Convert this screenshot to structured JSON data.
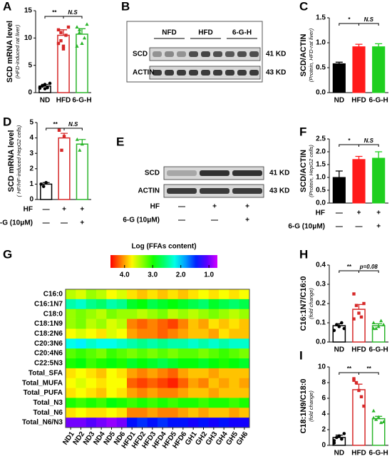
{
  "chart_data": [
    {
      "type": "bar",
      "panel": "A",
      "ylabel": "SCD mRNA level",
      "ysublabel": "(HFD-induced rat liver)",
      "bar_style": "outline",
      "categories": [
        "ND",
        "HFD",
        "6-G-H"
      ],
      "colors": [
        "#000000",
        "#d62828",
        "#2bb52b"
      ],
      "values": [
        1.2,
        10.5,
        10.7
      ],
      "errors": [
        0.3,
        1.0,
        1.0
      ],
      "points": [
        [
          0.8,
          1.2,
          1.5,
          0.9,
          1.7,
          1.0,
          1.3,
          0.7
        ],
        [
          11.5,
          9.5,
          8.5,
          10.5,
          12,
          9,
          11,
          8
        ],
        [
          12,
          11,
          9,
          10,
          12.5,
          8.5,
          11.5,
          9
        ]
      ],
      "annotations": [
        "**",
        "N.S"
      ],
      "ylim": [
        0,
        15
      ],
      "yticks": [
        0,
        5,
        10,
        15
      ]
    },
    {
      "type": "bar",
      "panel": "C",
      "ylabel": "SCD/ACTIN",
      "ysublabel": "(Protein, HFD-rat liver)",
      "bar_style": "filled",
      "categories": [
        "ND",
        "HFD",
        "6-G-H"
      ],
      "colors": [
        "#000000",
        "#ff1a1a",
        "#1fcf1f"
      ],
      "values": [
        0.58,
        0.92,
        0.92
      ],
      "errors": [
        0.03,
        0.05,
        0.06
      ],
      "annotations": [
        "*",
        "N.S"
      ],
      "ylim": [
        0,
        1.5
      ],
      "yticks": [
        {
          "value": 0,
          "label": "0.0"
        },
        0.5,
        {
          "value": 1,
          "label": "1.0"
        },
        1.5
      ]
    },
    {
      "type": "bar",
      "panel": "D",
      "ylabel": "SCD mRNA level",
      "ysublabel": "( HF/HF-induced HepG2 cells)",
      "bar_style": "outline",
      "categories": [
        null,
        null,
        null
      ],
      "colors": [
        "#000000",
        "#d62828",
        "#2bb52b"
      ],
      "values": [
        1.0,
        4.0,
        3.6
      ],
      "errors": [
        0.1,
        0.3,
        0.3
      ],
      "points": [
        [
          1.0,
          0.85,
          1.1
        ],
        [
          4.5,
          3.2,
          4.1
        ],
        [
          3.9,
          3.2,
          3.6
        ]
      ],
      "annotations": [
        "**",
        "N.S"
      ],
      "conditions": [
        {
          "label": "HF",
          "marks": [
            "—",
            "+",
            "+"
          ]
        },
        {
          "label": "6-G (10μM)",
          "marks": [
            "—",
            "—",
            "+"
          ]
        }
      ],
      "ylim": [
        0,
        5
      ],
      "yticks": [
        0,
        1,
        2,
        3,
        4,
        5
      ]
    },
    {
      "type": "bar",
      "panel": "F",
      "ylabel": "SCD/ACTIN",
      "ysublabel": "(Protein, HepG2 cells)",
      "bar_style": "filled",
      "categories": [
        null,
        null,
        null
      ],
      "colors": [
        "#000000",
        "#ff1a1a",
        "#1fcf1f"
      ],
      "values": [
        1.0,
        1.7,
        1.75
      ],
      "errors": [
        0.25,
        0.12,
        0.25
      ],
      "annotations": [
        "*",
        "N.S"
      ],
      "conditions": [
        {
          "label": "HF",
          "marks": [
            "—",
            "+",
            "+"
          ]
        },
        {
          "label": "6-G (10μM)",
          "marks": [
            "—",
            "—",
            "+"
          ]
        }
      ],
      "ylim": [
        0,
        2.5
      ],
      "yticks": [
        {
          "value": 0,
          "label": "0.0"
        },
        0.5,
        {
          "value": 1,
          "label": "1.0"
        },
        1.5,
        {
          "value": 2,
          "label": "2.0"
        },
        2.5
      ]
    },
    {
      "type": "heatmap",
      "panel": "G",
      "title": "Log (FFAs content)",
      "rows": [
        "C16:0",
        "C16:1N7",
        "C18:0",
        "C18:1N9",
        "C18:2N6",
        "C20:3N6",
        "C20:4N6",
        "C22:5N3",
        "Total_SFA",
        "Total_MUFA",
        "Total_PUFA",
        "Total_N3",
        "Total_N6",
        "Total_N6/N3"
      ],
      "columns": [
        "ND1",
        "ND2",
        "ND3",
        "ND4",
        "ND5",
        "ND6",
        "HFD1",
        "HFD2",
        "HFD3",
        "HFD4",
        "HFD5",
        "HFD6",
        "GH1",
        "GH2",
        "GH3",
        "GH4",
        "GH5",
        "GH6"
      ],
      "values": [
        [
          3.5,
          3.6,
          3.4,
          3.5,
          3.7,
          3.6,
          3.8,
          3.9,
          3.8,
          3.9,
          3.8,
          3.9,
          3.8,
          3.7,
          3.8,
          3.7,
          3.8,
          3.7
        ],
        [
          2.4,
          2.3,
          2.5,
          2.6,
          2.4,
          2.5,
          2.8,
          2.9,
          2.7,
          2.8,
          2.9,
          2.8,
          2.7,
          2.6,
          2.8,
          2.7,
          2.6,
          2.7
        ],
        [
          3.4,
          3.3,
          3.4,
          3.5,
          3.3,
          3.4,
          3.4,
          3.5,
          3.4,
          3.3,
          3.5,
          3.4,
          3.5,
          3.4,
          3.3,
          3.4,
          3.5,
          3.4
        ],
        [
          3.4,
          3.3,
          3.5,
          3.4,
          3.6,
          3.5,
          4.1,
          4.2,
          4.1,
          4.2,
          4.3,
          4.1,
          3.9,
          4.0,
          3.8,
          3.9,
          3.8,
          3.9
        ],
        [
          3.7,
          3.6,
          3.7,
          3.8,
          3.6,
          3.7,
          4.0,
          4.1,
          4.1,
          4.2,
          4.1,
          4.0,
          3.9,
          3.9,
          4.0,
          3.8,
          3.9,
          3.9
        ],
        [
          2.2,
          2.1,
          2.3,
          2.2,
          2.2,
          2.3,
          2.4,
          2.5,
          2.4,
          2.5,
          2.4,
          2.4,
          2.3,
          2.4,
          2.3,
          2.4,
          2.3,
          2.3
        ],
        [
          3.2,
          3.1,
          3.2,
          3.3,
          3.1,
          3.2,
          3.3,
          3.2,
          3.3,
          3.2,
          3.3,
          3.2,
          3.2,
          3.3,
          3.2,
          3.1,
          3.2,
          3.3
        ],
        [
          3.0,
          2.9,
          3.1,
          3.0,
          2.9,
          3.0,
          2.8,
          2.9,
          2.8,
          2.7,
          2.8,
          2.9,
          2.9,
          2.8,
          2.9,
          3.0,
          2.9,
          2.8
        ],
        [
          3.8,
          3.7,
          3.8,
          3.9,
          3.7,
          3.8,
          4.0,
          4.1,
          4.0,
          4.1,
          4.2,
          4.0,
          3.9,
          3.9,
          4.0,
          3.9,
          3.9,
          3.9
        ],
        [
          3.7,
          3.6,
          3.7,
          3.8,
          3.7,
          3.7,
          4.2,
          4.3,
          4.2,
          4.3,
          4.4,
          4.2,
          4.0,
          4.1,
          3.9,
          4.0,
          3.9,
          4.0
        ],
        [
          3.8,
          3.7,
          3.8,
          3.9,
          3.7,
          3.8,
          4.0,
          4.1,
          4.0,
          4.1,
          4.1,
          4.0,
          3.9,
          3.9,
          4.0,
          3.9,
          3.9,
          3.9
        ],
        [
          3.0,
          3.1,
          3.0,
          3.1,
          2.9,
          3.0,
          3.1,
          3.0,
          3.1,
          3.0,
          3.1,
          3.0,
          3.0,
          3.1,
          3.0,
          3.0,
          3.1,
          3.0
        ],
        [
          3.8,
          3.7,
          3.8,
          3.8,
          3.7,
          3.8,
          4.1,
          4.1,
          4.0,
          4.1,
          4.1,
          4.0,
          3.9,
          4.0,
          3.9,
          3.9,
          4.0,
          3.9
        ],
        [
          1.0,
          1.0,
          1.1,
          1.0,
          0.9,
          1.0,
          1.4,
          1.5,
          1.4,
          1.5,
          1.4,
          1.4,
          1.3,
          1.4,
          1.3,
          1.4,
          1.3,
          1.3
        ]
      ],
      "colorbar_lim": [
        4.5,
        0.7
      ],
      "colorbar_ticks": [
        {
          "value": 4,
          "label": "4.0"
        },
        {
          "value": 3,
          "label": "3.0"
        },
        {
          "value": 2,
          "label": "2.0"
        },
        {
          "value": 1,
          "label": "1.0"
        }
      ]
    },
    {
      "type": "bar",
      "panel": "H",
      "ylabel": "C16:1N7/C16:0",
      "ysublabel": "(fold change)",
      "bar_style": "outline",
      "categories": [
        "ND",
        "HFD",
        "6-G-H"
      ],
      "colors": [
        "#000000",
        "#d62828",
        "#2bb52b"
      ],
      "values": [
        0.085,
        0.17,
        0.085
      ],
      "errors": [
        0.01,
        0.025,
        0.01
      ],
      "points": [
        [
          0.06,
          0.09,
          0.08,
          0.1,
          0.07
        ],
        [
          0.25,
          0.19,
          0.15,
          0.13,
          0.2,
          0.12
        ],
        [
          0.1,
          0.07,
          0.08,
          0.11,
          0.09,
          0.07
        ]
      ],
      "annotations": [
        "**",
        "p=0.08"
      ],
      "ylim": [
        0,
        0.4
      ],
      "yticks": [
        {
          "value": 0,
          "label": "0.0"
        },
        0.1,
        0.2,
        0.3,
        0.4
      ]
    },
    {
      "type": "bar",
      "panel": "I",
      "ylabel": "C18:1N9/C18:0",
      "ysublabel": "(fold change)",
      "bar_style": "outline",
      "categories": [
        "ND",
        "HFD",
        "6-G-H"
      ],
      "colors": [
        "#000000",
        "#d62828",
        "#2bb52b"
      ],
      "values": [
        1.0,
        7.1,
        3.4
      ],
      "errors": [
        0.3,
        0.7,
        0.3
      ],
      "points": [
        [
          0.3,
          1.0,
          1.2,
          0.8,
          1.5,
          0.6
        ],
        [
          8.5,
          8.0,
          7.0,
          6.2,
          5.0,
          8.3
        ],
        [
          4.4,
          3.3,
          3.6,
          2.9,
          3.0,
          3.5
        ]
      ],
      "annotations": [
        "**",
        "**"
      ],
      "ylim": [
        0,
        10
      ],
      "yticks": [
        0,
        2,
        4,
        6,
        8,
        10
      ]
    }
  ],
  "blots": [
    {
      "panel": "B",
      "groups": [
        "NFD",
        "HFD",
        "6-G-H"
      ],
      "rows": [
        "SCD",
        "ACTIN"
      ],
      "sizes": [
        "41 KD",
        "43 KD"
      ]
    },
    {
      "panel": "E",
      "rows": [
        "SCD",
        "ACTIN"
      ],
      "sizes": [
        "41 KD",
        "43 KD"
      ],
      "conditions": [
        {
          "label": "HF",
          "marks": [
            "—",
            "+",
            "+"
          ]
        },
        {
          "label": "6-G (10μM)",
          "marks": [
            "—",
            "—",
            "+"
          ]
        }
      ]
    }
  ]
}
